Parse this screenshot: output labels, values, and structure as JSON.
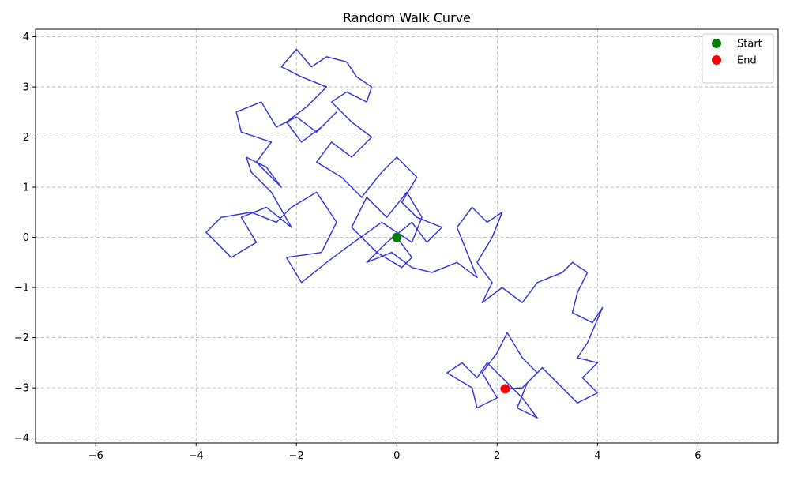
{
  "chart_data": {
    "type": "line",
    "title": "Random Walk Curve",
    "xlabel": "",
    "ylabel": "",
    "xlim": [
      -7.2,
      7.6
    ],
    "ylim": [
      -4.1,
      4.15
    ],
    "xticks": [
      -6,
      -4,
      -2,
      0,
      2,
      4,
      6
    ],
    "yticks": [
      -4,
      -3,
      -2,
      -1,
      0,
      1,
      2,
      3,
      4
    ],
    "xtick_labels": [
      "−6",
      "−4",
      "−2",
      "0",
      "2",
      "4",
      "6"
    ],
    "ytick_labels": [
      "−4",
      "−3",
      "−2",
      "−1",
      "0",
      "1",
      "2",
      "3",
      "4"
    ],
    "grid": true,
    "legend": {
      "position": "top-right",
      "entries": [
        "Start",
        "End"
      ]
    },
    "series": [
      {
        "color": "#2222dd",
        "points": [
          [
            0.0,
            0.0
          ],
          [
            0.3,
            -0.4
          ],
          [
            0.1,
            -0.6
          ],
          [
            -0.4,
            -0.3
          ],
          [
            -0.9,
            0.2
          ],
          [
            -0.6,
            0.8
          ],
          [
            -0.2,
            0.4
          ],
          [
            0.2,
            0.9
          ],
          [
            0.5,
            0.4
          ],
          [
            0.3,
            -0.1
          ],
          [
            -0.3,
            0.3
          ],
          [
            -1.0,
            -0.2
          ],
          [
            -1.4,
            -0.5
          ],
          [
            -1.9,
            -0.9
          ],
          [
            -2.2,
            -0.4
          ],
          [
            -1.5,
            -0.3
          ],
          [
            -1.2,
            0.3
          ],
          [
            -1.6,
            0.9
          ],
          [
            -2.1,
            0.6
          ],
          [
            -2.4,
            0.3
          ],
          [
            -2.9,
            0.5
          ],
          [
            -3.5,
            0.4
          ],
          [
            -3.8,
            0.1
          ],
          [
            -3.3,
            -0.4
          ],
          [
            -2.8,
            -0.1
          ],
          [
            -3.1,
            0.4
          ],
          [
            -2.6,
            0.6
          ],
          [
            -2.1,
            0.2
          ],
          [
            -2.5,
            0.9
          ],
          [
            -2.9,
            1.3
          ],
          [
            -3.0,
            1.6
          ],
          [
            -2.6,
            1.4
          ],
          [
            -2.3,
            1.0
          ],
          [
            -2.8,
            1.5
          ],
          [
            -2.5,
            1.9
          ],
          [
            -3.1,
            2.1
          ],
          [
            -3.2,
            2.5
          ],
          [
            -2.7,
            2.7
          ],
          [
            -2.4,
            2.2
          ],
          [
            -2.0,
            2.4
          ],
          [
            -1.6,
            2.1
          ],
          [
            -1.2,
            2.5
          ],
          [
            -1.5,
            2.2
          ],
          [
            -1.9,
            1.9
          ],
          [
            -2.2,
            2.3
          ],
          [
            -1.8,
            2.6
          ],
          [
            -1.4,
            3.0
          ],
          [
            -1.9,
            3.2
          ],
          [
            -2.3,
            3.4
          ],
          [
            -2.0,
            3.75
          ],
          [
            -1.7,
            3.4
          ],
          [
            -1.4,
            3.6
          ],
          [
            -1.0,
            3.5
          ],
          [
            -0.8,
            3.2
          ],
          [
            -0.5,
            3.0
          ],
          [
            -0.6,
            2.7
          ],
          [
            -1.0,
            2.9
          ],
          [
            -1.3,
            2.7
          ],
          [
            -0.9,
            2.3
          ],
          [
            -0.5,
            2.0
          ],
          [
            -0.9,
            1.6
          ],
          [
            -1.3,
            1.9
          ],
          [
            -1.6,
            1.5
          ],
          [
            -1.1,
            1.2
          ],
          [
            -0.7,
            0.8
          ],
          [
            -0.3,
            1.3
          ],
          [
            0.0,
            1.6
          ],
          [
            0.4,
            1.2
          ],
          [
            0.1,
            0.7
          ],
          [
            0.4,
            0.4
          ],
          [
            0.9,
            0.2
          ],
          [
            0.6,
            -0.1
          ],
          [
            0.3,
            0.3
          ],
          [
            -0.2,
            -0.1
          ],
          [
            -0.6,
            -0.5
          ],
          [
            -0.1,
            -0.3
          ],
          [
            0.3,
            -0.6
          ],
          [
            0.7,
            -0.7
          ],
          [
            1.2,
            -0.5
          ],
          [
            1.6,
            -0.8
          ],
          [
            1.4,
            -0.3
          ],
          [
            1.2,
            0.2
          ],
          [
            1.5,
            0.6
          ],
          [
            1.8,
            0.3
          ],
          [
            2.1,
            0.5
          ],
          [
            1.9,
            0.0
          ],
          [
            1.6,
            -0.5
          ],
          [
            1.9,
            -0.9
          ],
          [
            1.7,
            -1.3
          ],
          [
            2.1,
            -1.0
          ],
          [
            2.5,
            -1.3
          ],
          [
            2.8,
            -0.9
          ],
          [
            3.3,
            -0.7
          ],
          [
            3.5,
            -0.5
          ],
          [
            3.8,
            -0.7
          ],
          [
            3.6,
            -1.1
          ],
          [
            3.5,
            -1.5
          ],
          [
            3.9,
            -1.7
          ],
          [
            4.1,
            -1.4
          ],
          [
            3.8,
            -2.1
          ],
          [
            3.6,
            -2.4
          ],
          [
            4.0,
            -2.5
          ],
          [
            3.7,
            -2.8
          ],
          [
            4.0,
            -3.1
          ],
          [
            3.6,
            -3.3
          ],
          [
            3.2,
            -2.9
          ],
          [
            2.9,
            -2.6
          ],
          [
            2.6,
            -2.9
          ],
          [
            2.4,
            -3.4
          ],
          [
            2.8,
            -3.6
          ],
          [
            2.5,
            -3.2
          ],
          [
            2.1,
            -2.8
          ],
          [
            1.8,
            -2.5
          ],
          [
            1.6,
            -2.8
          ],
          [
            1.3,
            -2.5
          ],
          [
            1.0,
            -2.7
          ],
          [
            1.5,
            -3.0
          ],
          [
            1.6,
            -3.4
          ],
          [
            2.0,
            -3.2
          ],
          [
            1.7,
            -2.7
          ],
          [
            2.0,
            -2.3
          ],
          [
            2.2,
            -1.9
          ],
          [
            2.5,
            -2.4
          ],
          [
            2.8,
            -2.7
          ],
          [
            2.5,
            -3.0
          ],
          [
            2.16,
            -3.02
          ]
        ]
      }
    ],
    "markers": [
      {
        "label": "Start",
        "x": 0.0,
        "y": 0.0,
        "color": "#008000"
      },
      {
        "label": "End",
        "x": 2.16,
        "y": -3.02,
        "color": "#ff0000"
      }
    ]
  }
}
